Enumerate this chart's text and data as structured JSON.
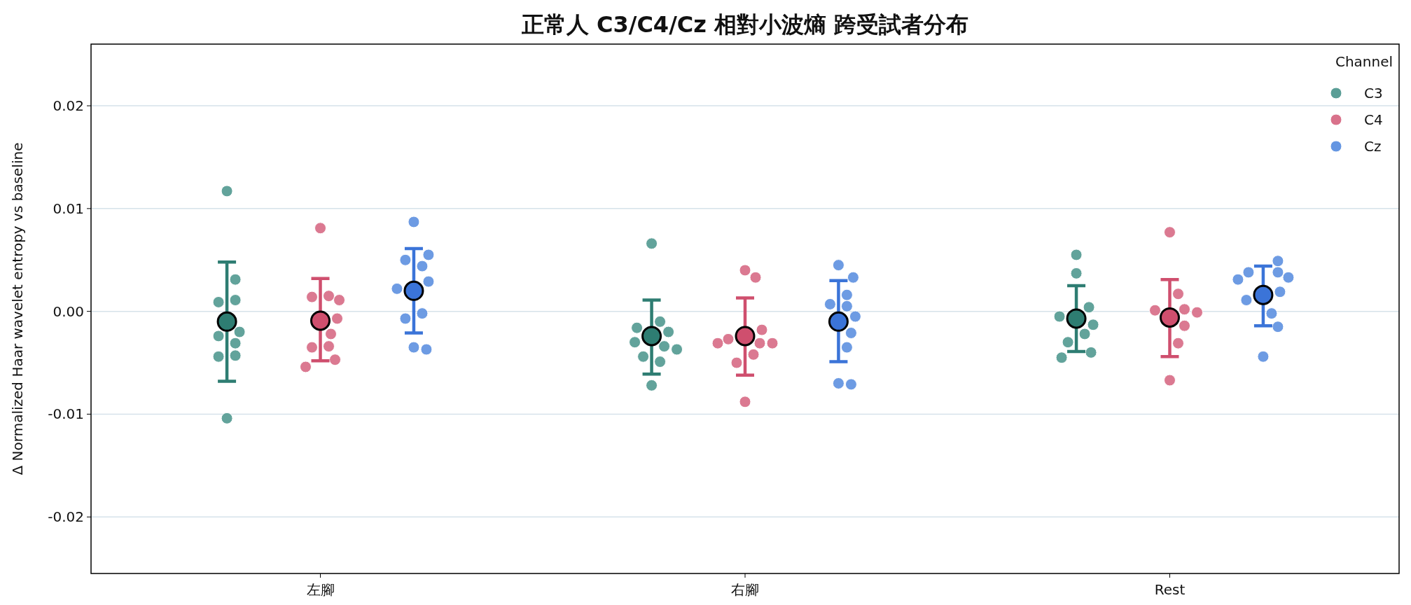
{
  "chart_data": {
    "type": "scatter",
    "title": "正常人 C3/C4/Cz 相對小波熵 跨受試者分布",
    "ylabel": "Δ Normalized Haar wavelet entropy vs baseline",
    "legend_title": "Channel",
    "legend": "top right",
    "grid": "y",
    "marker": "circle",
    "categories": [
      "左腳",
      "右腳",
      "Rest"
    ],
    "ylim": [
      -0.0255,
      0.026
    ],
    "yticks": [
      {
        "value": -0.02,
        "label": "-0.02"
      },
      {
        "value": -0.01,
        "label": "-0.01"
      },
      {
        "value": 0,
        "label": "0.00"
      },
      {
        "value": 0.01,
        "label": "0.01"
      },
      {
        "value": 0.02,
        "label": "0.02"
      }
    ],
    "series": [
      {
        "name": "C3",
        "color": "#5a9e96",
        "x": [
          "左腳",
          "左腳",
          "左腳",
          "左腳",
          "左腳",
          "左腳",
          "左腳",
          "左腳",
          "左腳",
          "左腳",
          "右腳",
          "右腳",
          "右腳",
          "右腳",
          "右腳",
          "右腳",
          "右腳",
          "右腳",
          "右腳",
          "右腳",
          "Rest",
          "Rest",
          "Rest",
          "Rest",
          "Rest",
          "Rest",
          "Rest",
          "Rest",
          "Rest"
        ],
        "values": [
          0.0117,
          0.0011,
          0.0009,
          0.0031,
          -0.0024,
          -0.0031,
          -0.0043,
          -0.002,
          -0.0044,
          -0.0104,
          0.0066,
          -0.0016,
          -0.002,
          -0.001,
          -0.003,
          -0.0034,
          -0.0044,
          -0.0049,
          -0.0037,
          -0.0072,
          0.0055,
          0.0037,
          0.0004,
          -0.0005,
          -0.0013,
          -0.0022,
          -0.003,
          -0.004,
          -0.0045
        ]
      },
      {
        "name": "C4",
        "color": "#d9728b",
        "x": [
          "左腳",
          "左腳",
          "左腳",
          "左腳",
          "左腳",
          "左腳",
          "左腳",
          "左腳",
          "左腳",
          "左腳",
          "右腳",
          "右腳",
          "右腳",
          "右腳",
          "右腳",
          "右腳",
          "右腳",
          "右腳",
          "右腳",
          "右腳",
          "Rest",
          "Rest",
          "Rest",
          "Rest",
          "Rest",
          "Rest",
          "Rest",
          "Rest"
        ],
        "values": [
          0.0081,
          0.0014,
          0.0015,
          0.0011,
          -0.0007,
          -0.0022,
          -0.0035,
          -0.0034,
          -0.0047,
          -0.0054,
          0.004,
          0.0033,
          -0.0018,
          -0.0031,
          -0.0042,
          -0.0031,
          -0.005,
          -0.0088,
          -0.0027,
          -0.0031,
          0.0077,
          0.0017,
          0.0002,
          0.0001,
          -0.0001,
          -0.0014,
          -0.0031,
          -0.0067
        ]
      },
      {
        "name": "Cz",
        "color": "#6596e2",
        "x": [
          "左腳",
          "左腳",
          "左腳",
          "左腳",
          "左腳",
          "左腳",
          "左腳",
          "左腳",
          "左腳",
          "左腳",
          "右腳",
          "右腳",
          "右腳",
          "右腳",
          "右腳",
          "右腳",
          "右腳",
          "右腳",
          "右腳",
          "右腳",
          "Rest",
          "Rest",
          "Rest",
          "Rest",
          "Rest",
          "Rest",
          "Rest",
          "Rest",
          "Rest",
          "Rest"
        ],
        "values": [
          0.0087,
          0.005,
          0.0055,
          0.0029,
          0.0022,
          0.0044,
          -0.0002,
          -0.0007,
          -0.0035,
          -0.0037,
          0.0045,
          0.0033,
          0.0016,
          0.0007,
          0.0005,
          -0.0005,
          -0.0021,
          -0.0035,
          -0.007,
          -0.0071,
          0.0049,
          0.0033,
          0.0038,
          0.0031,
          0.0038,
          0.0019,
          0.0011,
          -0.0002,
          -0.0015,
          -0.0044
        ]
      },
      {
        "color": "#2e7d72",
        "x": [
          "左腳",
          "右腳",
          "Rest"
        ],
        "values": [
          -0.001,
          -0.0024,
          -0.0007
        ],
        "errors": [
          [
            -0.0068,
            0.0048
          ],
          [
            -0.0061,
            0.0011
          ],
          [
            -0.0039,
            0.0025
          ]
        ]
      },
      {
        "color": "#cf4f6e",
        "x": [
          "左腳",
          "右腳",
          "Rest"
        ],
        "values": [
          -0.0009,
          -0.0024,
          -0.0006
        ],
        "errors": [
          [
            -0.0048,
            0.0032
          ],
          [
            -0.0062,
            0.0013
          ],
          [
            -0.0044,
            0.0031
          ]
        ]
      },
      {
        "color": "#3b74d8",
        "x": [
          "左腳",
          "右腳",
          "Rest"
        ],
        "values": [
          0.002,
          -0.001,
          0.0016
        ],
        "errors": [
          [
            -0.0021,
            0.0061
          ],
          [
            -0.0049,
            0.003
          ],
          [
            -0.0014,
            0.0044
          ]
        ]
      }
    ]
  }
}
